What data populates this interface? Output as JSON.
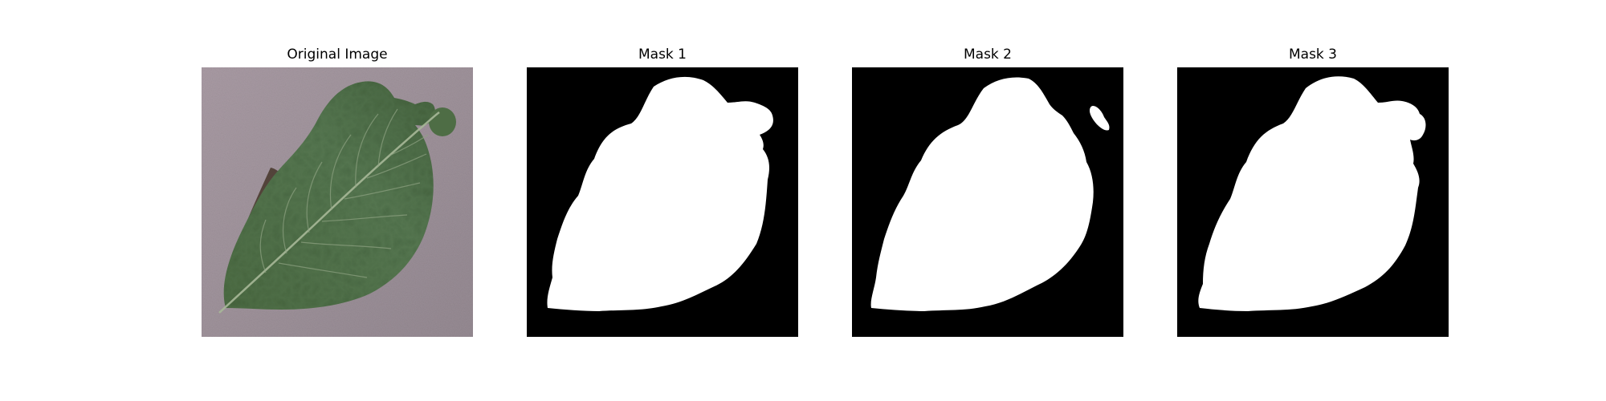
{
  "figure": {
    "panels": [
      {
        "title": "Original Image",
        "kind": "photo",
        "subject": "leaf-photo"
      },
      {
        "title": "Mask 1",
        "kind": "mask",
        "background_color": "#000000",
        "mask_color": "#ffffff"
      },
      {
        "title": "Mask 2",
        "kind": "mask",
        "background_color": "#000000",
        "mask_color": "#ffffff"
      },
      {
        "title": "Mask 3",
        "kind": "mask",
        "background_color": "#000000",
        "mask_color": "#ffffff"
      }
    ]
  },
  "colors": {
    "figure_background": "#ffffff",
    "photo_background": "#9b8f97",
    "leaf_green": "#4f6e46",
    "leaf_dark": "#3c5635",
    "leaf_vein": "#a7b898",
    "blight_brown": "#4a3b30"
  }
}
